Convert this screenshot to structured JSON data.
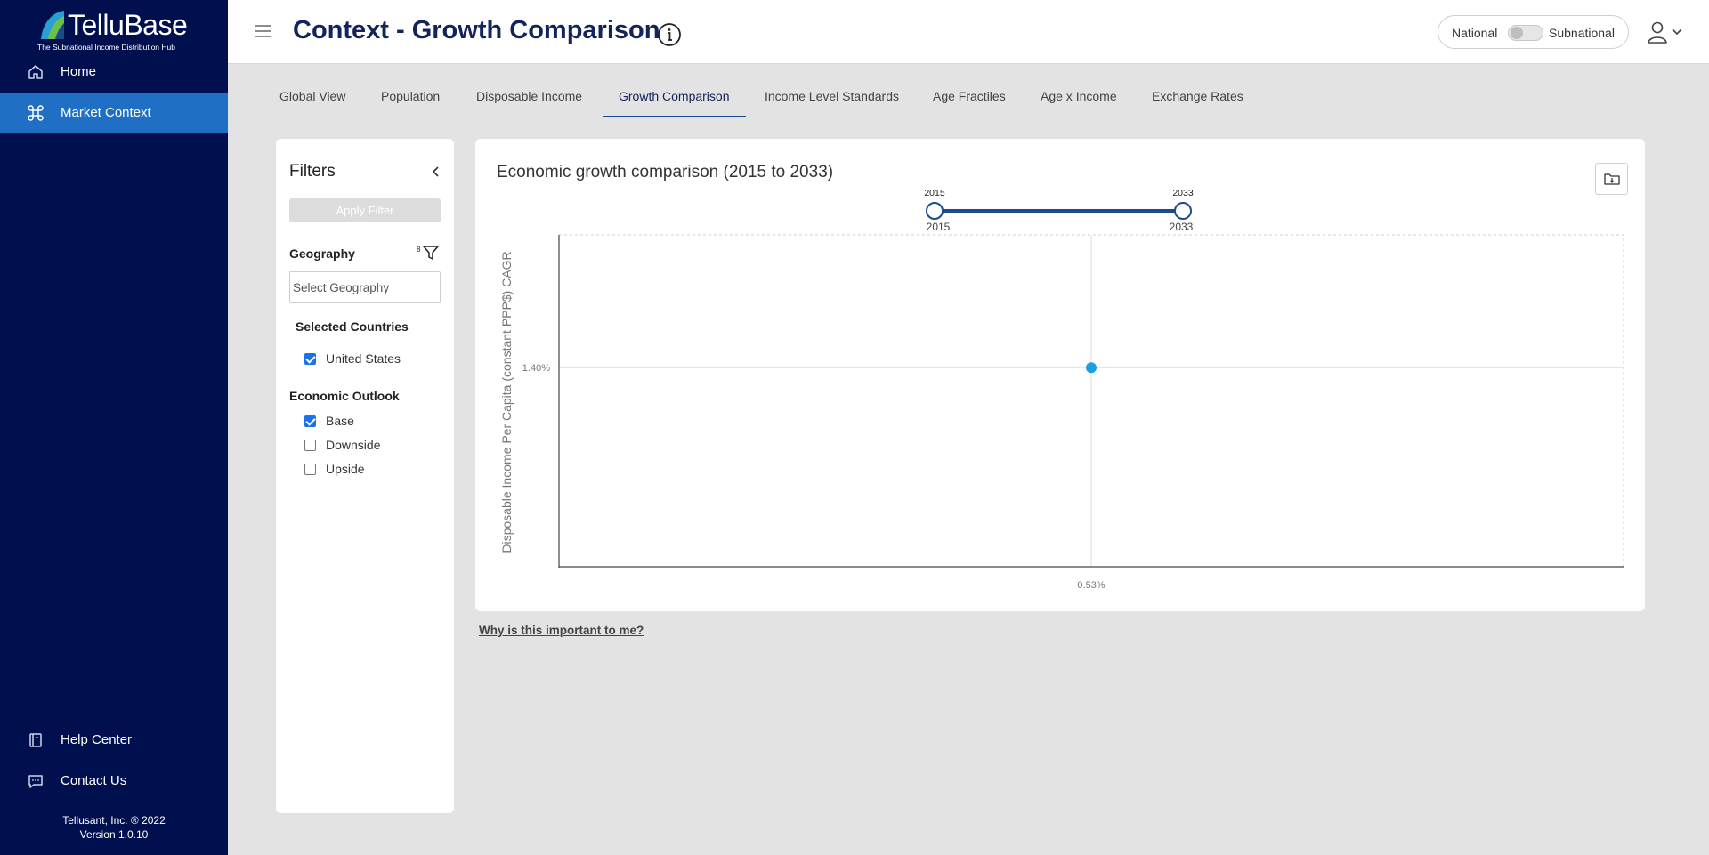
{
  "sidebar": {
    "logo": {
      "brand": "TelluBase",
      "tagline": "The Subnational Income Distribution Hub"
    },
    "nav": [
      {
        "label": "Home",
        "icon": "home-icon",
        "active": false
      },
      {
        "label": "Market Context",
        "icon": "command-icon",
        "active": true
      }
    ],
    "bottom_nav": [
      {
        "label": "Help Center",
        "icon": "book-icon"
      },
      {
        "label": "Contact Us",
        "icon": "chat-icon"
      }
    ],
    "footer": {
      "company": "Tellusant, Inc. ® 2022",
      "version": "Version 1.0.10"
    }
  },
  "header": {
    "title": "Context - Growth Comparison",
    "toggle": {
      "left_label": "National",
      "right_label": "Subnational",
      "state": "National"
    }
  },
  "tabs": [
    {
      "label": "Global View",
      "active": false
    },
    {
      "label": "Population",
      "active": false
    },
    {
      "label": "Disposable Income",
      "active": false
    },
    {
      "label": "Growth Comparison",
      "active": true
    },
    {
      "label": "Income Level Standards",
      "active": false
    },
    {
      "label": "Age Fractiles",
      "active": false
    },
    {
      "label": "Age x Income",
      "active": false
    },
    {
      "label": "Exchange Rates",
      "active": false
    }
  ],
  "filters": {
    "title": "Filters",
    "apply_label": "Apply Filter",
    "geography": {
      "label": "Geography",
      "count": "8",
      "placeholder": "Select Geography"
    },
    "selected_countries": {
      "label": "Selected Countries",
      "items": [
        {
          "label": "United States",
          "checked": true
        }
      ]
    },
    "economic_outlook": {
      "label": "Economic Outlook",
      "items": [
        {
          "label": "Base",
          "checked": true
        },
        {
          "label": "Downside",
          "checked": false
        },
        {
          "label": "Upside",
          "checked": false
        }
      ]
    }
  },
  "chart": {
    "title": "Economic growth comparison (2015 to 2033)",
    "range_slider": {
      "min": 2015,
      "max": 2033,
      "start": 2015,
      "end": 2033,
      "start_label": "2015",
      "end_label": "2033"
    }
  },
  "chart_data": {
    "type": "scatter",
    "title": "Economic growth comparison (2015 to 2033)",
    "xlabel": "",
    "ylabel": "Disposable Income Per Capita (constant PPP$) CAGR",
    "x_tick_labels": [
      "0.53%"
    ],
    "y_tick_labels": [
      "1.40%"
    ],
    "points": [
      {
        "x": 0.53,
        "y": 1.4
      }
    ],
    "point_color": "#1ba1e2",
    "grid": true
  },
  "why_link": "Why is this important to me?",
  "colors": {
    "sidebar_bg": "#00104f",
    "active_nav": "#1f6fc5",
    "title": "#13235b",
    "slider": "#1c4b8f",
    "point": "#1ba1e2"
  }
}
